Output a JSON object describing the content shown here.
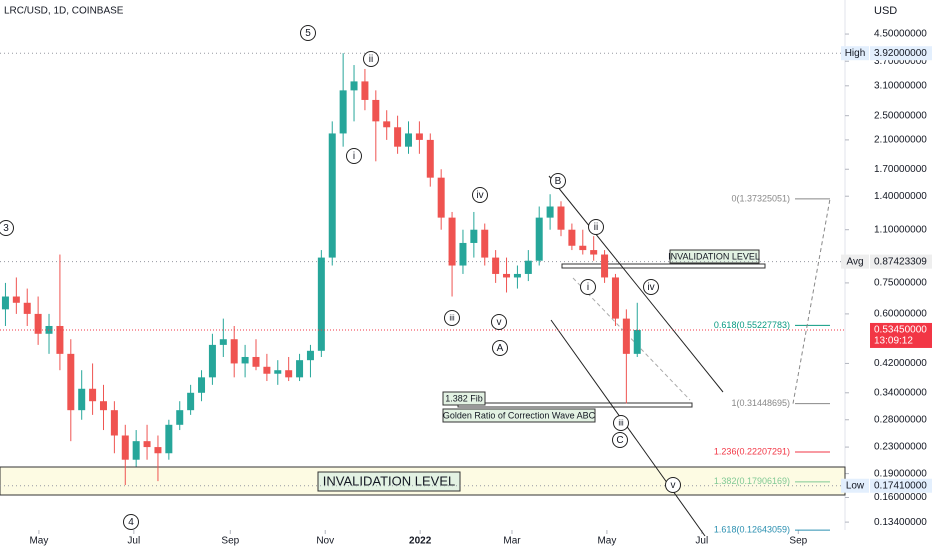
{
  "chart_data": {
    "type": "candlestick",
    "title": "LRC/USD, 1D, COINBASE",
    "axis_label": "USD",
    "up_color": "#26a69a",
    "down_color": "#ef5350",
    "log_scale": true,
    "x": [
      3.5,
      10.5,
      17.5,
      24.5,
      31.5,
      38.5,
      45.5,
      52.5,
      59.5,
      66.5,
      73.5,
      80.5,
      87.5,
      94.5,
      101.5,
      108.5,
      115.5,
      122.5,
      129.5,
      136.5,
      143.5,
      150.5,
      157.5,
      164.5,
      171.5,
      178.5,
      185.5,
      192.5,
      199.5,
      206.5,
      213.5,
      220.5,
      227.5,
      234.5,
      241.5,
      248.5,
      255.5,
      262.5,
      269.5,
      276.5,
      283.5,
      290.5,
      297.5,
      304.5,
      311.5,
      318.5,
      325.5,
      332.5,
      339.5,
      346.5,
      353.5,
      360.5,
      367.5,
      374.5,
      381.5,
      388.5,
      395.5,
      402.5,
      409.5
    ],
    "open": [
      0.62,
      0.68,
      0.65,
      0.6,
      0.52,
      0.55,
      0.45,
      0.3,
      0.35,
      0.32,
      0.3,
      0.25,
      0.21,
      0.24,
      0.23,
      0.22,
      0.27,
      0.3,
      0.34,
      0.38,
      0.48,
      0.5,
      0.42,
      0.44,
      0.41,
      0.39,
      0.4,
      0.38,
      0.43,
      0.46,
      0.9,
      2.2,
      3.0,
      3.2,
      2.8,
      2.4,
      2.3,
      2.0,
      2.2,
      2.1,
      1.6,
      1.2,
      0.85,
      1.0,
      1.1,
      0.9,
      0.8,
      0.78,
      0.8,
      0.88,
      1.2,
      1.3,
      1.1,
      0.98,
      0.95,
      0.92,
      0.78,
      0.58,
      0.45
    ],
    "high": [
      0.75,
      0.78,
      0.72,
      0.68,
      0.6,
      0.92,
      0.5,
      0.4,
      0.42,
      0.36,
      0.32,
      0.27,
      0.26,
      0.27,
      0.25,
      0.28,
      0.32,
      0.36,
      0.4,
      0.52,
      0.58,
      0.55,
      0.48,
      0.5,
      0.45,
      0.43,
      0.44,
      0.45,
      0.48,
      0.95,
      2.4,
      3.92,
      3.6,
      3.5,
      3.0,
      2.6,
      2.5,
      2.4,
      2.4,
      2.2,
      1.7,
      1.25,
      1.1,
      1.25,
      1.15,
      0.95,
      0.9,
      0.85,
      0.95,
      1.3,
      1.42,
      1.35,
      1.15,
      1.1,
      1.05,
      0.95,
      0.8,
      0.62,
      0.65
    ],
    "low": [
      0.55,
      0.6,
      0.55,
      0.48,
      0.45,
      0.4,
      0.24,
      0.28,
      0.29,
      0.26,
      0.22,
      0.175,
      0.2,
      0.21,
      0.18,
      0.21,
      0.26,
      0.29,
      0.32,
      0.36,
      0.44,
      0.38,
      0.38,
      0.4,
      0.37,
      0.36,
      0.37,
      0.37,
      0.38,
      0.44,
      0.85,
      2.0,
      2.4,
      2.6,
      1.8,
      2.1,
      1.9,
      1.9,
      1.9,
      1.5,
      1.1,
      0.68,
      0.8,
      0.9,
      0.85,
      0.75,
      0.7,
      0.72,
      0.76,
      0.85,
      1.1,
      1.05,
      0.95,
      0.92,
      0.88,
      0.75,
      0.55,
      0.315,
      0.44
    ],
    "close": [
      0.68,
      0.65,
      0.6,
      0.52,
      0.55,
      0.45,
      0.3,
      0.35,
      0.32,
      0.3,
      0.25,
      0.21,
      0.24,
      0.23,
      0.22,
      0.27,
      0.3,
      0.34,
      0.38,
      0.48,
      0.5,
      0.42,
      0.44,
      0.41,
      0.39,
      0.4,
      0.38,
      0.43,
      0.46,
      0.9,
      2.2,
      3.0,
      3.2,
      2.8,
      2.4,
      2.3,
      2.0,
      2.2,
      2.1,
      1.6,
      1.2,
      0.85,
      1.0,
      1.1,
      0.9,
      0.8,
      0.78,
      0.8,
      0.88,
      1.2,
      1.3,
      1.1,
      0.98,
      0.95,
      0.92,
      0.78,
      0.58,
      0.45,
      0.5345
    ],
    "xlim": [
      0,
      543
    ],
    "xticks": [
      {
        "value": 25,
        "label": "May"
      },
      {
        "value": 86,
        "label": "Jul"
      },
      {
        "value": 148,
        "label": "Sep"
      },
      {
        "value": 209,
        "label": "Nov"
      },
      {
        "value": 270,
        "label": "2022"
      },
      {
        "value": 329,
        "label": "Mar"
      },
      {
        "value": 390,
        "label": "May"
      },
      {
        "value": 451,
        "label": "Jul"
      },
      {
        "value": 513,
        "label": "Sep"
      }
    ],
    "ylim": [
      0.1266,
      5.75
    ],
    "yticks": [
      {
        "value": 4.5,
        "label": "4.50000000"
      },
      {
        "value": 3.7,
        "label": "3.70000000"
      },
      {
        "value": 3.1,
        "label": "3.10000000"
      },
      {
        "value": 2.5,
        "label": "2.50000000"
      },
      {
        "value": 2.1,
        "label": "2.10000000"
      },
      {
        "value": 1.7,
        "label": "1.70000000"
      },
      {
        "value": 1.4,
        "label": "1.40000000"
      },
      {
        "value": 1.1,
        "label": "1.10000000"
      },
      {
        "value": 0.75,
        "label": "0.75000000"
      },
      {
        "value": 0.6,
        "label": "0.60000000"
      },
      {
        "value": 0.42,
        "label": "0.42000000"
      },
      {
        "value": 0.34,
        "label": "0.34000000"
      },
      {
        "value": 0.28,
        "label": "0.28000000"
      },
      {
        "value": 0.23,
        "label": "0.23000000"
      },
      {
        "value": 0.19,
        "label": "0.19000000"
      },
      {
        "value": 0.16,
        "label": "0.16000000"
      },
      {
        "value": 0.134,
        "label": "0.13400000"
      }
    ],
    "markers": [
      {
        "name": "High",
        "value": 3.92,
        "label": "3.92000000",
        "color": "#e3effd"
      },
      {
        "name": "Avg",
        "value": 0.87423309,
        "label": "0.87423309",
        "color": "#eeeeee"
      },
      {
        "name": "Low",
        "value": 0.1741,
        "label": "0.17410000",
        "color": "#e3effd"
      }
    ],
    "current": {
      "value": 0.5345,
      "label": "0.53450000",
      "countdown": "13:09:12",
      "color": "#f23645"
    },
    "fib_levels": [
      {
        "value": 1.37325051,
        "label": "0(1.37325051)",
        "color": "#888888"
      },
      {
        "value": 0.55227783,
        "label": "0.618(0.55227783)",
        "color": "#089981"
      },
      {
        "value": 0.31448695,
        "label": "1(0.31448695)",
        "color": "#888888"
      },
      {
        "value": 0.22207291,
        "label": "1.236(0.22207291)",
        "color": "#f23645"
      },
      {
        "value": 0.17906169,
        "label": "1.382(0.17906169)",
        "color": "#81c995"
      },
      {
        "value": 0.12643059,
        "label": "1.618(0.12643059)",
        "color": "#2a8fb0"
      }
    ],
    "waves": [
      "5",
      "ii",
      "i",
      "iv",
      "iii",
      "v",
      "A",
      "B",
      "ii",
      "i",
      "iv",
      "iii",
      "C",
      "v",
      "3",
      "4"
    ],
    "notes": [
      "INVALIDATION LEVEL",
      "INVALIDATION LEVEL",
      "1.382 Fib",
      "Golden Ratio of Correction Wave ABC"
    ]
  }
}
